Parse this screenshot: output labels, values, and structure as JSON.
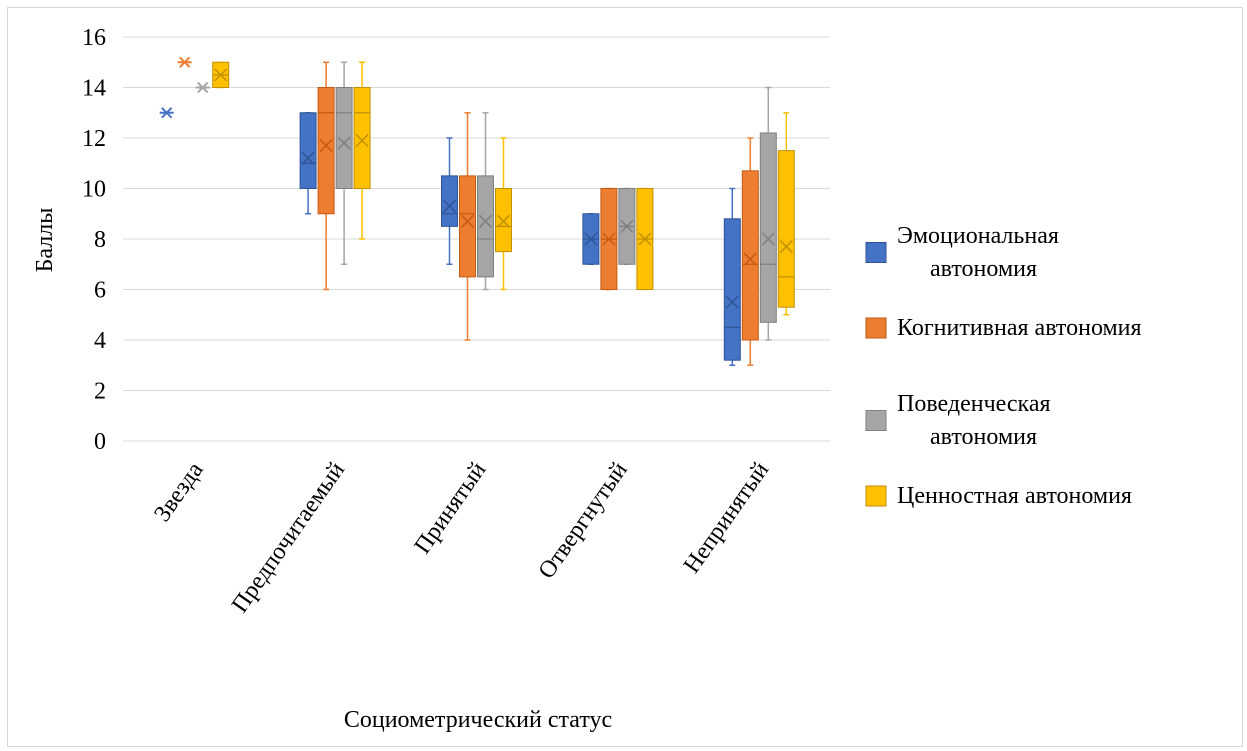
{
  "chart_data": {
    "type": "boxplot",
    "title": "",
    "xlabel": "Социометрический статус",
    "ylabel": "Баллы",
    "ylim": [
      0,
      16
    ],
    "yticks": [
      0,
      2,
      4,
      6,
      8,
      10,
      12,
      14,
      16
    ],
    "grid": true,
    "legend_position": "right",
    "categories": [
      "Звезда",
      "Предпочитаемый",
      "Принятый",
      "Отвергнутый",
      "Непринятый"
    ],
    "series": [
      {
        "name": "Эмоциональная автономия",
        "color": "#4472C4",
        "boxes": [
          {
            "min": 13,
            "q1": 13,
            "median": 13,
            "q3": 13,
            "max": 13,
            "mean": 13
          },
          {
            "min": 9,
            "q1": 10,
            "median": 11,
            "q3": 13,
            "max": 13,
            "mean": 11.2
          },
          {
            "min": 7,
            "q1": 8.5,
            "median": 9,
            "q3": 10.5,
            "max": 12,
            "mean": 9.3
          },
          {
            "min": 7,
            "q1": 7,
            "median": 8,
            "q3": 9,
            "max": 9,
            "mean": 8
          },
          {
            "min": 3,
            "q1": 3.2,
            "median": 4.5,
            "q3": 8.8,
            "max": 10,
            "mean": 5.5
          }
        ]
      },
      {
        "name": "Когнитивная автономия",
        "color": "#ED7D31",
        "boxes": [
          {
            "min": 15,
            "q1": 15,
            "median": 15,
            "q3": 15,
            "max": 15,
            "mean": 15
          },
          {
            "min": 6,
            "q1": 9,
            "median": 13,
            "q3": 14,
            "max": 15,
            "mean": 11.7
          },
          {
            "min": 4,
            "q1": 6.5,
            "median": 9,
            "q3": 10.5,
            "max": 13,
            "mean": 8.7
          },
          {
            "min": 6,
            "q1": 6,
            "median": 8,
            "q3": 10,
            "max": 10,
            "mean": 8
          },
          {
            "min": 3,
            "q1": 4,
            "median": 7,
            "q3": 10.7,
            "max": 12,
            "mean": 7.2
          }
        ]
      },
      {
        "name": "Поведенческая автономия",
        "color": "#A5A5A5",
        "boxes": [
          {
            "min": 14,
            "q1": 14,
            "median": 14,
            "q3": 14,
            "max": 14,
            "mean": 14
          },
          {
            "min": 7,
            "q1": 10,
            "median": 13,
            "q3": 14,
            "max": 15,
            "mean": 11.8
          },
          {
            "min": 6,
            "q1": 6.5,
            "median": 8,
            "q3": 10.5,
            "max": 13,
            "mean": 8.7
          },
          {
            "min": 7,
            "q1": 7,
            "median": 8.5,
            "q3": 10,
            "max": 10,
            "mean": 8.5
          },
          {
            "min": 4,
            "q1": 4.7,
            "median": 7,
            "q3": 12.2,
            "max": 14,
            "mean": 8
          }
        ]
      },
      {
        "name": "Ценностная автономия",
        "color": "#FFC000",
        "boxes": [
          {
            "min": 14,
            "q1": 14,
            "median": 14.5,
            "q3": 15,
            "max": 15,
            "mean": 14.5
          },
          {
            "min": 8,
            "q1": 10,
            "median": 13,
            "q3": 14,
            "max": 15,
            "mean": 11.9
          },
          {
            "min": 6,
            "q1": 7.5,
            "median": 8.5,
            "q3": 10,
            "max": 12,
            "mean": 8.7
          },
          {
            "min": 6,
            "q1": 6,
            "median": 8,
            "q3": 10,
            "max": 10,
            "mean": 8
          },
          {
            "min": 5,
            "q1": 5.3,
            "median": 6.5,
            "q3": 11.5,
            "max": 13,
            "mean": 7.7
          }
        ]
      }
    ]
  }
}
